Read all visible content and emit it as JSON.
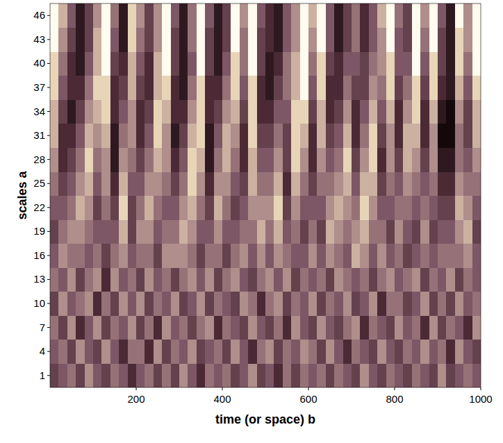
{
  "chart_data": {
    "type": "heatmap",
    "x_label": "time (or space) b",
    "y_label": "scales a",
    "xlim": [
      0,
      1000
    ],
    "ylim": [
      -0.5,
      47.5
    ],
    "xticks": [
      200,
      400,
      600,
      800,
      1000
    ],
    "yticks": [
      1,
      4,
      7,
      10,
      13,
      16,
      19,
      22,
      25,
      28,
      31,
      34,
      37,
      40,
      43,
      46
    ],
    "zlim": [
      0,
      9
    ],
    "x": [
      10,
      30,
      50,
      70,
      90,
      110,
      130,
      150,
      170,
      190,
      210,
      230,
      250,
      270,
      290,
      310,
      330,
      350,
      370,
      390,
      410,
      430,
      450,
      470,
      490,
      510,
      530,
      550,
      570,
      590,
      610,
      630,
      650,
      670,
      690,
      710,
      730,
      750,
      770,
      790,
      810,
      830,
      850,
      870,
      890,
      910,
      930,
      950,
      970,
      990
    ],
    "y": [
      1,
      4,
      7,
      10,
      13,
      16,
      19,
      22,
      25,
      28,
      31,
      34,
      37,
      40,
      43,
      46
    ],
    "values": [
      [
        3,
        4,
        5,
        3,
        6,
        4,
        3,
        5,
        4,
        2,
        4,
        5,
        3,
        5,
        3,
        6,
        4,
        2,
        5,
        4,
        5,
        3,
        4,
        6,
        3,
        4,
        2,
        5,
        3,
        5,
        4,
        5,
        3,
        5,
        4,
        3,
        6,
        4,
        3,
        5,
        4,
        3,
        5,
        4,
        3,
        6,
        3,
        4,
        5,
        4
      ],
      [
        4,
        5,
        3,
        6,
        4,
        3,
        6,
        4,
        2,
        5,
        5,
        2,
        6,
        3,
        5,
        4,
        6,
        3,
        4,
        5,
        3,
        6,
        4,
        2,
        5,
        6,
        3,
        5,
        4,
        6,
        5,
        3,
        6,
        4,
        2,
        5,
        4,
        3,
        6,
        4,
        3,
        5,
        4,
        6,
        4,
        5,
        2,
        6,
        4,
        3
      ],
      [
        5,
        3,
        6,
        2,
        4,
        6,
        3,
        5,
        4,
        6,
        3,
        5,
        2,
        6,
        4,
        5,
        3,
        5,
        6,
        2,
        5,
        4,
        3,
        6,
        4,
        3,
        5,
        2,
        6,
        4,
        3,
        6,
        4,
        3,
        5,
        6,
        2,
        5,
        4,
        3,
        6,
        4,
        5,
        2,
        6,
        3,
        5,
        4,
        2,
        6
      ],
      [
        3,
        6,
        4,
        5,
        6,
        2,
        5,
        3,
        6,
        4,
        6,
        3,
        5,
        4,
        6,
        3,
        4,
        6,
        3,
        5,
        4,
        3,
        6,
        5,
        2,
        5,
        6,
        3,
        5,
        4,
        6,
        3,
        5,
        4,
        6,
        3,
        4,
        6,
        2,
        5,
        5,
        3,
        4,
        6,
        3,
        5,
        3,
        6,
        4,
        5
      ],
      [
        5,
        4,
        6,
        3,
        5,
        6,
        2,
        6,
        4,
        5,
        3,
        6,
        4,
        5,
        3,
        5,
        6,
        4,
        6,
        3,
        5,
        6,
        4,
        3,
        5,
        6,
        4,
        6,
        3,
        5,
        4,
        5,
        3,
        6,
        5,
        4,
        5,
        3,
        5,
        6,
        4,
        5,
        6,
        3,
        5,
        4,
        6,
        3,
        5,
        4
      ],
      [
        4,
        6,
        5,
        5,
        4,
        5,
        3,
        5,
        6,
        4,
        5,
        5,
        3,
        6,
        6,
        6,
        5,
        3,
        5,
        5,
        3,
        5,
        6,
        4,
        6,
        4,
        6,
        5,
        4,
        4,
        6,
        4,
        6,
        5,
        4,
        7,
        6,
        4,
        6,
        4,
        5,
        3,
        4,
        5,
        4,
        5,
        5,
        5,
        6,
        4
      ],
      [
        3,
        5,
        6,
        6,
        5,
        4,
        4,
        4,
        7,
        3,
        6,
        6,
        4,
        5,
        5,
        7,
        6,
        4,
        4,
        6,
        4,
        4,
        5,
        5,
        7,
        5,
        7,
        4,
        5,
        3,
        5,
        3,
        7,
        6,
        5,
        6,
        7,
        5,
        5,
        3,
        6,
        4,
        3,
        6,
        3,
        4,
        4,
        6,
        7,
        3
      ],
      [
        4,
        4,
        5,
        7,
        6,
        3,
        5,
        3,
        8,
        3,
        5,
        7,
        5,
        4,
        4,
        6,
        7,
        5,
        3,
        7,
        5,
        3,
        4,
        6,
        6,
        6,
        8,
        3,
        6,
        4,
        4,
        4,
        6,
        7,
        6,
        5,
        8,
        6,
        4,
        4,
        5,
        5,
        4,
        5,
        4,
        3,
        3,
        7,
        6,
        4
      ],
      [
        5,
        3,
        4,
        6,
        7,
        4,
        6,
        2,
        7,
        4,
        4,
        6,
        6,
        5,
        3,
        5,
        8,
        6,
        2,
        6,
        6,
        4,
        3,
        7,
        5,
        5,
        7,
        2,
        7,
        5,
        3,
        5,
        5,
        6,
        7,
        4,
        7,
        7,
        3,
        5,
        4,
        6,
        5,
        4,
        5,
        2,
        2,
        6,
        5,
        5
      ],
      [
        6,
        2,
        3,
        5,
        8,
        5,
        6,
        1,
        6,
        5,
        3,
        5,
        7,
        6,
        2,
        4,
        8,
        7,
        1,
        5,
        7,
        5,
        2,
        7,
        4,
        4,
        6,
        3,
        8,
        6,
        2,
        6,
        4,
        5,
        8,
        3,
        6,
        8,
        2,
        6,
        3,
        7,
        6,
        3,
        6,
        1,
        1,
        5,
        4,
        6
      ],
      [
        7,
        2,
        2,
        4,
        7,
        6,
        7,
        1,
        5,
        6,
        2,
        4,
        8,
        6,
        1,
        3,
        7,
        8,
        1,
        4,
        7,
        6,
        2,
        8,
        3,
        3,
        5,
        3,
        8,
        7,
        2,
        7,
        3,
        4,
        7,
        2,
        5,
        8,
        3,
        6,
        2,
        7,
        7,
        2,
        6,
        0,
        0,
        5,
        3,
        7
      ],
      [
        7,
        3,
        1,
        3,
        6,
        7,
        8,
        2,
        4,
        6,
        2,
        3,
        8,
        7,
        2,
        2,
        6,
        8,
        2,
        3,
        6,
        7,
        3,
        8,
        2,
        2,
        4,
        4,
        8,
        8,
        3,
        7,
        2,
        3,
        6,
        2,
        4,
        7,
        4,
        7,
        2,
        6,
        8,
        2,
        7,
        1,
        0,
        6,
        3,
        7
      ],
      [
        8,
        4,
        2,
        2,
        5,
        8,
        8,
        2,
        3,
        7,
        3,
        2,
        7,
        8,
        2,
        1,
        5,
        8,
        2,
        2,
        5,
        8,
        4,
        8,
        2,
        1,
        3,
        5,
        7,
        9,
        4,
        8,
        2,
        2,
        5,
        3,
        3,
        6,
        5,
        8,
        3,
        5,
        8,
        3,
        8,
        2,
        1,
        7,
        4,
        8
      ],
      [
        8,
        5,
        2,
        1,
        4,
        7,
        9,
        3,
        2,
        7,
        4,
        2,
        7,
        9,
        3,
        1,
        4,
        9,
        3,
        1,
        4,
        8,
        5,
        9,
        3,
        1,
        2,
        5,
        7,
        9,
        5,
        8,
        3,
        2,
        4,
        4,
        3,
        5,
        6,
        8,
        4,
        4,
        9,
        4,
        8,
        3,
        1,
        8,
        5,
        9
      ],
      [
        9,
        6,
        3,
        1,
        3,
        7,
        9,
        4,
        1,
        8,
        5,
        3,
        6,
        9,
        3,
        1,
        5,
        9,
        3,
        1,
        3,
        9,
        5,
        9,
        3,
        2,
        1,
        4,
        6,
        9,
        6,
        9,
        4,
        1,
        3,
        5,
        2,
        4,
        6,
        9,
        4,
        3,
        9,
        5,
        9,
        3,
        1,
        8,
        6,
        9
      ],
      [
        9,
        7,
        4,
        1,
        3,
        6,
        9,
        5,
        1,
        8,
        6,
        3,
        6,
        9,
        4,
        1,
        5,
        9,
        4,
        1,
        3,
        9,
        6,
        9,
        4,
        2,
        1,
        4,
        6,
        9,
        7,
        9,
        4,
        1,
        3,
        5,
        2,
        4,
        7,
        9,
        5,
        3,
        9,
        6,
        9,
        4,
        1,
        9,
        6,
        9
      ]
    ]
  }
}
